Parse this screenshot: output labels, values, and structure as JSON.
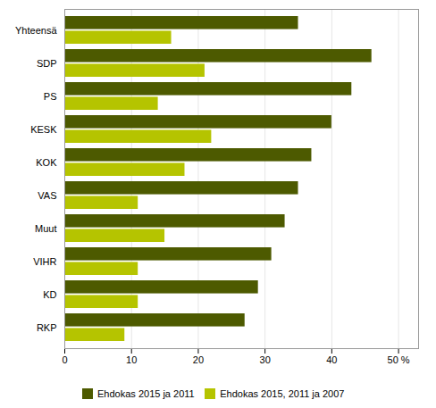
{
  "chart_data": {
    "type": "bar",
    "orientation": "horizontal",
    "categories": [
      "Yhteensä",
      "SDP",
      "PS",
      "KESK",
      "KOK",
      "VAS",
      "Muut",
      "VIHR",
      "KD",
      "RKP"
    ],
    "series": [
      {
        "name": "Ehdokas 2015 ja 2011",
        "color": "#4d5a00",
        "values": [
          35,
          46,
          43,
          40,
          37,
          35,
          33,
          31,
          29,
          27
        ]
      },
      {
        "name": "Ehdokas 2015, 2011 ja 2007",
        "color": "#b5c400",
        "values": [
          16,
          21,
          14,
          22,
          18,
          11,
          15,
          11,
          11,
          9
        ]
      }
    ],
    "xlim": [
      0,
      53
    ],
    "xticks": [
      0,
      10,
      20,
      30,
      40,
      {
        "value": 50,
        "label": "50 %"
      }
    ],
    "grid": true,
    "legend": "bottom"
  }
}
